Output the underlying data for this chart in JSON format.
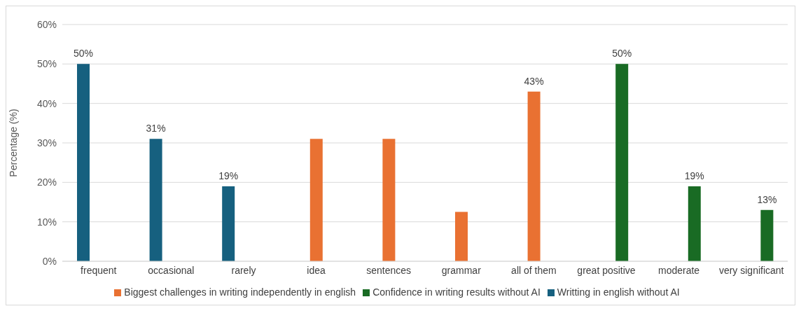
{
  "chart_data": {
    "type": "bar",
    "ylabel": "Percentage (%)",
    "categories": [
      "frequent",
      "occasional",
      "rarely",
      "idea",
      "sentences",
      "grammar",
      "all of them",
      "great positive",
      "moderate",
      "very significant"
    ],
    "series": [
      {
        "name": "Writting in english without AI",
        "color": "#16607f",
        "values": [
          50,
          31,
          19,
          null,
          null,
          null,
          null,
          null,
          null,
          null
        ],
        "value_labels": [
          "50%",
          "31%",
          "19%",
          null,
          null,
          null,
          null,
          null,
          null,
          null
        ]
      },
      {
        "name": "Biggest challenges in writing independently in english",
        "color": "#e97132",
        "values": [
          null,
          null,
          null,
          31,
          31,
          12.5,
          43,
          null,
          null,
          null
        ],
        "value_labels": [
          null,
          null,
          null,
          null,
          null,
          null,
          "43%",
          null,
          null,
          null
        ]
      },
      {
        "name": "Confidence in writing results without AI",
        "color": "#196b24",
        "values": [
          null,
          null,
          null,
          null,
          null,
          null,
          null,
          50,
          19,
          13
        ],
        "value_labels": [
          null,
          null,
          null,
          null,
          null,
          null,
          null,
          "50%",
          "19%",
          "13%"
        ]
      }
    ],
    "ylim": [
      0,
      60
    ],
    "yticks": [
      {
        "value": 0,
        "label": "0%"
      },
      {
        "value": 10,
        "label": "10%"
      },
      {
        "value": 20,
        "label": "20%"
      },
      {
        "value": 30,
        "label": "30%"
      },
      {
        "value": 40,
        "label": "40%"
      },
      {
        "value": 50,
        "label": "50%"
      },
      {
        "value": 60,
        "label": "60%"
      }
    ],
    "grid": "y",
    "legend": "bottom"
  }
}
